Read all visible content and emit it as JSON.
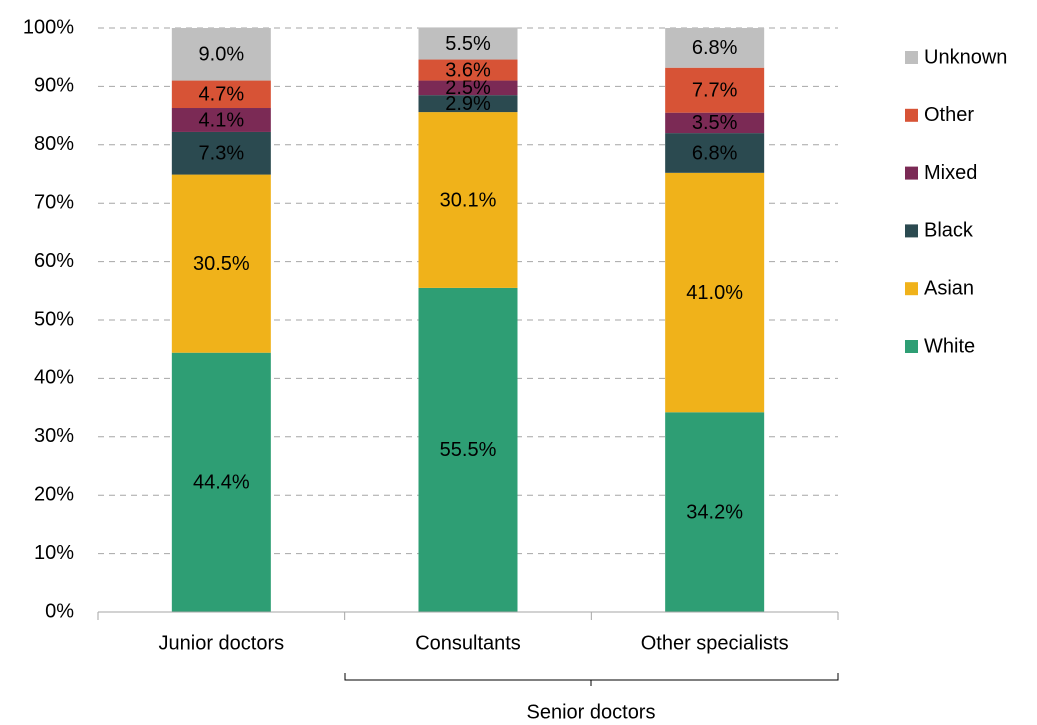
{
  "chart_data": {
    "type": "stacked_bar",
    "categories": [
      "Junior doctors",
      "Consultants",
      "Other specialists"
    ],
    "series": [
      {
        "name": "White",
        "color": "#2e9e74",
        "values": [
          44.4,
          55.5,
          34.2
        ],
        "value_labels": [
          "44.4%",
          "55.5%",
          "34.2%"
        ]
      },
      {
        "name": "Asian",
        "color": "#f0b21a",
        "values": [
          30.5,
          30.1,
          41.0
        ],
        "value_labels": [
          "30.5%",
          "30.1%",
          "41.0%"
        ]
      },
      {
        "name": "Black",
        "color": "#2b4a50",
        "values": [
          7.3,
          2.9,
          6.8
        ],
        "value_labels": [
          "7.3%",
          "2.9%",
          "6.8%"
        ]
      },
      {
        "name": "Mixed",
        "color": "#7b2a55",
        "values": [
          4.1,
          2.5,
          3.5
        ],
        "value_labels": [
          "4.1%",
          "2.5%",
          "3.5%"
        ]
      },
      {
        "name": "Other",
        "color": "#d75336",
        "values": [
          4.7,
          3.6,
          7.7
        ],
        "value_labels": [
          "4.7%",
          "3.6%",
          "7.7%"
        ]
      },
      {
        "name": "Unknown",
        "color": "#bfbfbf",
        "values": [
          9.0,
          5.5,
          6.8
        ],
        "value_labels": [
          "9.0%",
          "5.5%",
          "6.8%"
        ]
      }
    ],
    "ylim": [
      0,
      100
    ],
    "yticks": [
      {
        "value": 0,
        "label": "0%"
      },
      {
        "value": 10,
        "label": "10%"
      },
      {
        "value": 20,
        "label": "20%"
      },
      {
        "value": 30,
        "label": "30%"
      },
      {
        "value": 40,
        "label": "40%"
      },
      {
        "value": 50,
        "label": "50%"
      },
      {
        "value": 60,
        "label": "60%"
      },
      {
        "value": 70,
        "label": "70%"
      },
      {
        "value": 80,
        "label": "80%"
      },
      {
        "value": 90,
        "label": "90%"
      },
      {
        "value": 100,
        "label": "100%"
      }
    ],
    "grid": true,
    "legend": "right",
    "annotations": [
      {
        "text": "Senior doctors"
      }
    ]
  }
}
